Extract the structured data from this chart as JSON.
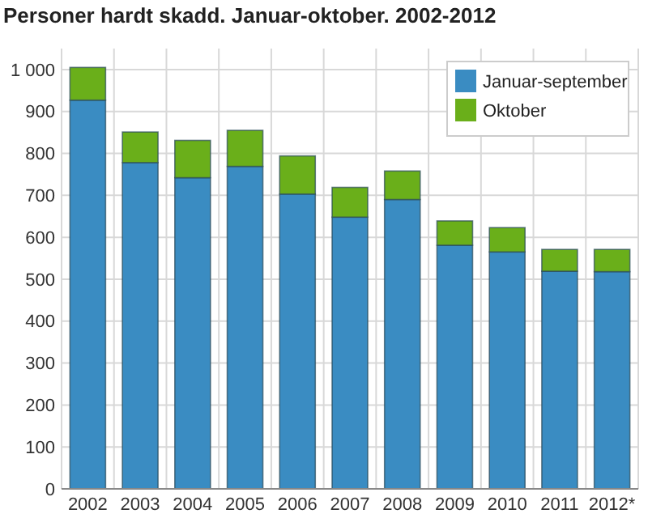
{
  "chart_data": {
    "type": "bar",
    "title": "Personer hardt skadd. Januar-oktober. 2002-2012",
    "stacked": true,
    "categories": [
      "2002",
      "2003",
      "2004",
      "2005",
      "2006",
      "2007",
      "2008",
      "2009",
      "2010",
      "2011",
      "2012*"
    ],
    "series": [
      {
        "name": "Januar-september",
        "color": "#3a8cc2",
        "values": [
          927,
          778,
          742,
          769,
          703,
          648,
          690,
          581,
          565,
          519,
          518
        ]
      },
      {
        "name": "Oktober",
        "color": "#6aaf1a",
        "values": [
          78,
          73,
          89,
          86,
          91,
          71,
          68,
          58,
          58,
          52,
          53
        ]
      }
    ],
    "ylim": [
      0,
      1050
    ],
    "yticks": [
      0,
      100,
      200,
      300,
      400,
      500,
      600,
      700,
      800,
      900,
      {
        "value": 1000,
        "label": "1 000"
      }
    ],
    "grid": true,
    "legend": "top right"
  }
}
